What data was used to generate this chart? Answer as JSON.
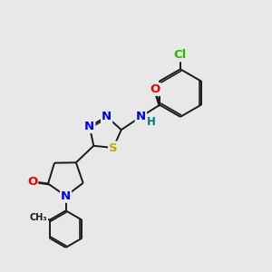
{
  "bg_color": "#e8e8e8",
  "bond_color": "#1a1a1a",
  "atom_colors": {
    "N": "#0000ee",
    "O": "#ee0000",
    "S": "#bbaa00",
    "Cl": "#22bb00",
    "H": "#007777",
    "C": "#1a1a1a"
  },
  "font_size": 8.5,
  "bond_width": 1.4,
  "dbo": 0.055
}
